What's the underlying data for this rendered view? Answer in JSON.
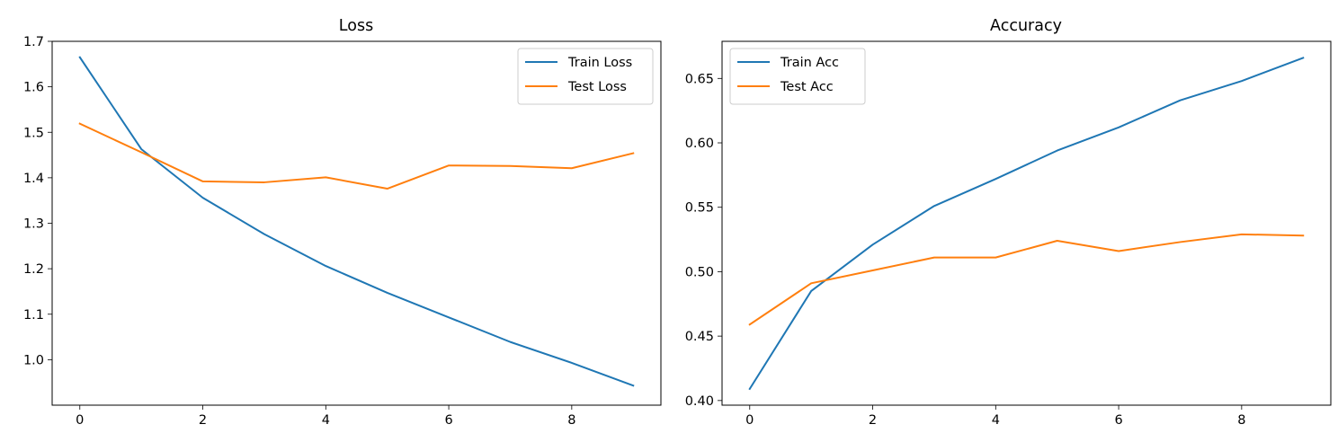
{
  "chart_data": [
    {
      "type": "line",
      "title": "Loss",
      "xlabel": "",
      "ylabel": "",
      "x": [
        0,
        1,
        2,
        3,
        4,
        5,
        6,
        7,
        8,
        9
      ],
      "xlim": [
        -0.45,
        9.45
      ],
      "ylim": [
        0.9,
        1.7
      ],
      "xticks": [
        0,
        2,
        4,
        6,
        8
      ],
      "yticks": [
        1.0,
        1.1,
        1.2,
        1.3,
        1.4,
        1.5,
        1.6,
        1.7
      ],
      "xtick_labels": [
        "0",
        "2",
        "4",
        "6",
        "8"
      ],
      "ytick_labels": [
        "1.0",
        "1.1",
        "1.2",
        "1.3",
        "1.4",
        "1.5",
        "1.6",
        "1.7"
      ],
      "grid": false,
      "legend_position": "upper right",
      "series": [
        {
          "name": "Train Loss",
          "color": "#1f77b4",
          "values": [
            1.665,
            1.463,
            1.356,
            1.276,
            1.206,
            1.147,
            1.093,
            1.039,
            0.993,
            0.943
          ]
        },
        {
          "name": "Test Loss",
          "color": "#ff7f0e",
          "values": [
            1.519,
            1.456,
            1.392,
            1.39,
            1.401,
            1.376,
            1.427,
            1.426,
            1.421,
            1.454
          ]
        }
      ]
    },
    {
      "type": "line",
      "title": "Accuracy",
      "xlabel": "",
      "ylabel": "",
      "x": [
        0,
        1,
        2,
        3,
        4,
        5,
        6,
        7,
        8,
        9
      ],
      "xlim": [
        -0.45,
        9.45
      ],
      "ylim": [
        0.3964,
        0.6788
      ],
      "xticks": [
        0,
        2,
        4,
        6,
        8
      ],
      "yticks": [
        0.4,
        0.45,
        0.5,
        0.55,
        0.6,
        0.65
      ],
      "xtick_labels": [
        "0",
        "2",
        "4",
        "6",
        "8"
      ],
      "ytick_labels": [
        "0.40",
        "0.45",
        "0.50",
        "0.55",
        "0.60",
        "0.65"
      ],
      "grid": false,
      "legend_position": "upper left",
      "series": [
        {
          "name": "Train Acc",
          "color": "#1f77b4",
          "values": [
            0.409,
            0.485,
            0.521,
            0.551,
            0.572,
            0.594,
            0.612,
            0.633,
            0.648,
            0.666
          ]
        },
        {
          "name": "Test Acc",
          "color": "#ff7f0e",
          "values": [
            0.459,
            0.491,
            0.501,
            0.511,
            0.511,
            0.524,
            0.516,
            0.523,
            0.529,
            0.528
          ]
        }
      ]
    }
  ]
}
